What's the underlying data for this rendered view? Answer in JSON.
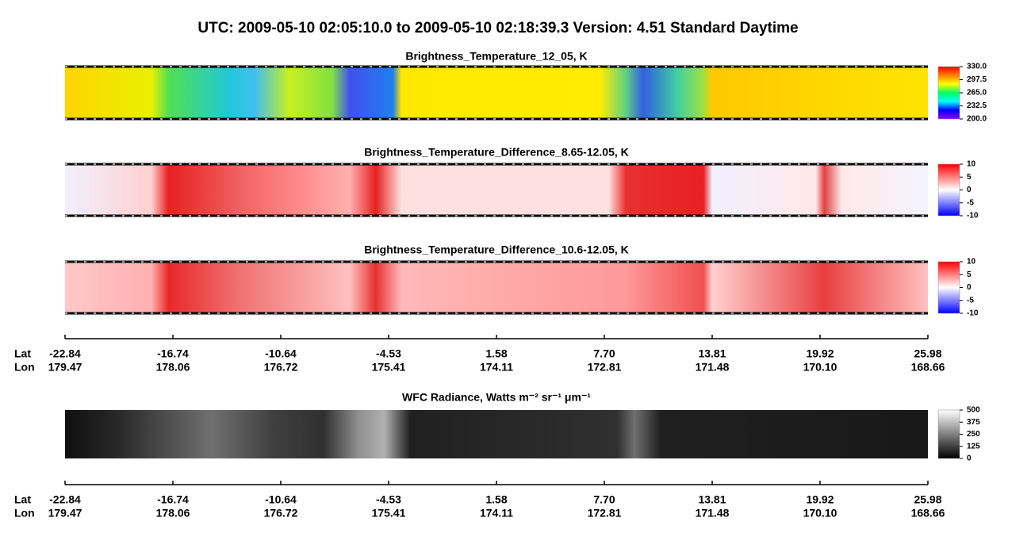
{
  "title": "UTC:  2009-05-10   02:05:10.0  to  2009-05-10   02:18:39.3    Version: 4.51  Standard Daytime",
  "chart_data": [
    {
      "type": "heatmap",
      "title": "Brightness_Temperature_12_05, K",
      "zlim": [
        200,
        330
      ],
      "zticks": [
        {
          "value": 200,
          "label": "200.0"
        },
        232.5,
        {
          "value": 265,
          "label": "265.0"
        },
        297.5,
        {
          "value": 330,
          "label": "330.0"
        }
      ],
      "colors": [
        "#8a00ff",
        "#0000ff",
        "#00ffff",
        "#00ff60",
        "#ffff00",
        "#ff8000",
        "#ff0000"
      ]
    },
    {
      "type": "heatmap",
      "title": "Brightness_Temperature_Difference_8.65-12.05, K",
      "zlim": [
        -10,
        10
      ],
      "zticks": [
        -10,
        -5,
        0,
        5,
        10
      ],
      "colors": [
        "#0000ff",
        "#ffffff",
        "#ff0000"
      ]
    },
    {
      "type": "heatmap",
      "title": "Brightness_Temperature_Difference_10.6-12.05, K",
      "zlim": [
        -10,
        10
      ],
      "zticks": [
        -10,
        -5,
        0,
        5,
        10
      ],
      "colors": [
        "#0000ff",
        "#ffffff",
        "#ff0000"
      ]
    },
    {
      "type": "heatmap",
      "title": "WFC Radiance, Watts m⁻² sr⁻¹ μm⁻¹",
      "zlim": [
        0,
        500
      ],
      "zticks": [
        0,
        125,
        250,
        375,
        500
      ],
      "colors": [
        "#000000",
        "#ffffff"
      ]
    }
  ],
  "geo_axis": {
    "labels": [
      "Lat",
      "Lon"
    ],
    "lat": [
      -22.84,
      -16.74,
      -10.64,
      -4.53,
      1.58,
      {
        "value": 7.7,
        "label": "7.70"
      },
      13.81,
      19.92,
      25.98
    ],
    "lon": [
      179.47,
      178.06,
      176.72,
      175.41,
      174.11,
      172.81,
      171.48,
      {
        "value": 170.1,
        "label": "170.10"
      },
      168.66
    ]
  }
}
